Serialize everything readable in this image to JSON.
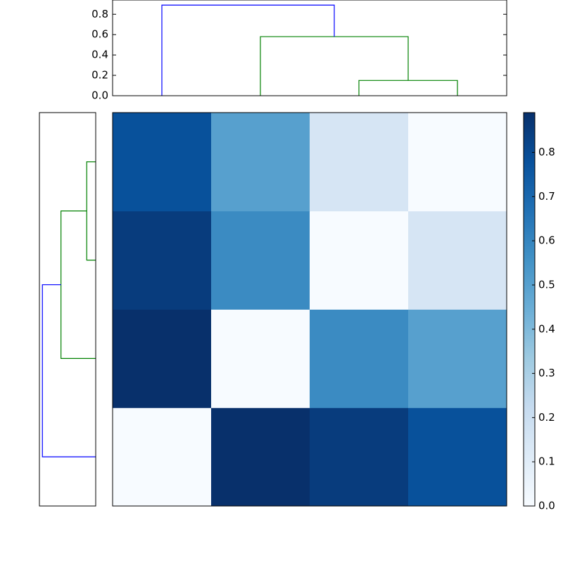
{
  "chart_data": [
    {
      "type": "dendrogram",
      "orientation": "top",
      "linkage": [
        [
          2,
          3,
          0.15
        ],
        [
          1,
          4,
          0.58
        ],
        [
          0,
          5,
          0.89
        ]
      ],
      "link_colors": [
        "#008000",
        "#008000",
        "#0000ff"
      ],
      "ylim": [
        0,
        0.94
      ],
      "yticks": [
        {
          "value": 0,
          "label": "0.0"
        },
        0.2,
        0.4,
        0.6,
        0.8
      ]
    },
    {
      "type": "dendrogram",
      "orientation": "left",
      "linkage": [
        [
          2,
          3,
          0.15
        ],
        [
          1,
          4,
          0.58
        ],
        [
          0,
          5,
          0.89
        ]
      ],
      "link_colors": [
        "#008000",
        "#008000",
        "#0000ff"
      ],
      "xlim": [
        0.94,
        0
      ]
    },
    {
      "type": "heatmap",
      "colormap": "Blues",
      "z": [
        [
          0,
          0.89,
          0.85,
          0.78
        ],
        [
          0.89,
          0,
          0.58,
          0.5
        ],
        [
          0.85,
          0.58,
          0,
          0.15
        ],
        [
          0.78,
          0.5,
          0.15,
          0
        ]
      ],
      "clim": [
        0,
        0.89
      ],
      "colorbar_ticks": [
        {
          "value": 0,
          "label": "0.0"
        },
        0.1,
        0.2,
        0.3,
        0.4,
        0.5,
        0.6,
        0.7,
        0.8
      ]
    }
  ]
}
